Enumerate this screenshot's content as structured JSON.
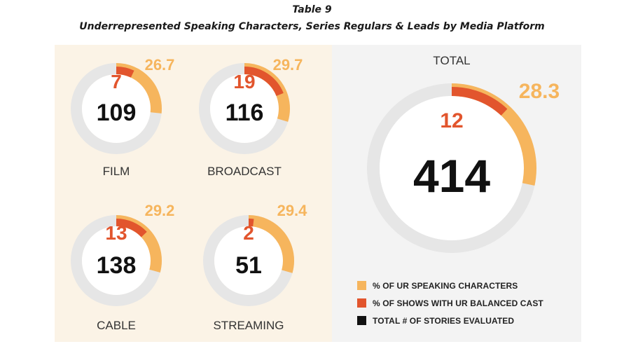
{
  "header": {
    "table_number": "Table 9",
    "subtitle": "Underrepresented Speaking Characters, Series Regulars & Leads by Media Platform"
  },
  "colors": {
    "ur_speaking": "#f6b55d",
    "ur_balanced_cast": "#e2552d",
    "total_stories": "#111111",
    "ring_track": "#e6e6e6"
  },
  "legend": [
    {
      "label": "% OF UR SPEAKING CHARACTERS",
      "color": "#f6b55d"
    },
    {
      "label": "% OF SHOWS WITH UR BALANCED CAST",
      "color": "#e2552d"
    },
    {
      "label": "TOTAL # OF STORIES EVALUATED",
      "color": "#111111"
    }
  ],
  "chart_data": {
    "type": "donut",
    "series_keys": [
      "pct_ur_speaking_characters",
      "pct_shows_ur_balanced_cast",
      "total_stories_evaluated"
    ],
    "platforms": [
      {
        "name": "FILM",
        "pct_ur_speaking_characters": 26.7,
        "pct_shows_ur_balanced_cast": 7,
        "total_stories_evaluated": 109
      },
      {
        "name": "BROADCAST",
        "pct_ur_speaking_characters": 29.7,
        "pct_shows_ur_balanced_cast": 19,
        "total_stories_evaluated": 116
      },
      {
        "name": "CABLE",
        "pct_ur_speaking_characters": 29.2,
        "pct_shows_ur_balanced_cast": 13,
        "total_stories_evaluated": 138
      },
      {
        "name": "STREAMING",
        "pct_ur_speaking_characters": 29.4,
        "pct_shows_ur_balanced_cast": 2,
        "total_stories_evaluated": 51
      },
      {
        "name": "TOTAL",
        "pct_ur_speaking_characters": 28.3,
        "pct_shows_ur_balanced_cast": 12,
        "total_stories_evaluated": 414
      }
    ]
  }
}
